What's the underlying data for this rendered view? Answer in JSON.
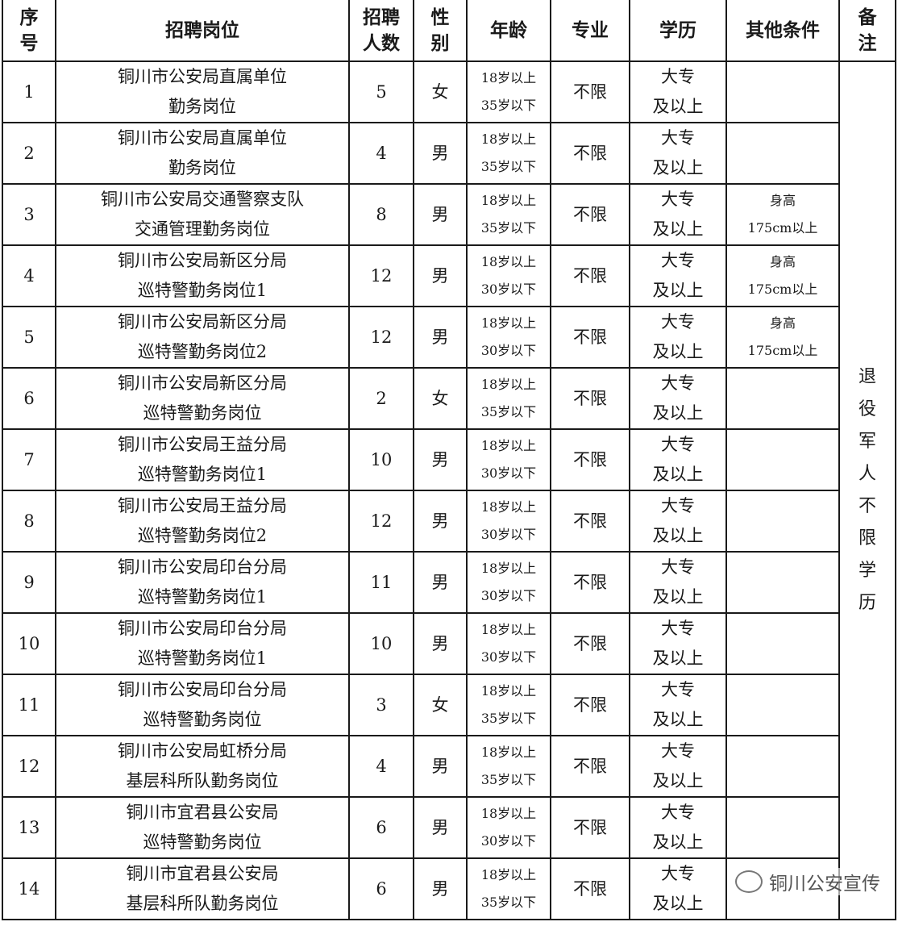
{
  "headers": {
    "no": "序号",
    "position": "招聘岗位",
    "count": "招聘人数",
    "gender": "性别",
    "age": "年龄",
    "major": "专业",
    "education": "学历",
    "other": "其他条件",
    "remark": "备注"
  },
  "rows": [
    {
      "no": "1",
      "pos1": "铜川市公安局直属单位",
      "pos2": "勤务岗位",
      "count": "5",
      "gender": "女",
      "age1": "18岁以上",
      "age2": "35岁以下",
      "major": "不限",
      "edu1": "大专",
      "edu2": "及以上",
      "other1": "",
      "other2": ""
    },
    {
      "no": "2",
      "pos1": "铜川市公安局直属单位",
      "pos2": "勤务岗位",
      "count": "4",
      "gender": "男",
      "age1": "18岁以上",
      "age2": "35岁以下",
      "major": "不限",
      "edu1": "大专",
      "edu2": "及以上",
      "other1": "",
      "other2": ""
    },
    {
      "no": "3",
      "pos1": "铜川市公安局交通警察支队",
      "pos2": "交通管理勤务岗位",
      "count": "8",
      "gender": "男",
      "age1": "18岁以上",
      "age2": "35岁以下",
      "major": "不限",
      "edu1": "大专",
      "edu2": "及以上",
      "other1": "身高",
      "other2": "175cm以上"
    },
    {
      "no": "4",
      "pos1": "铜川市公安局新区分局",
      "pos2": "巡特警勤务岗位1",
      "count": "12",
      "gender": "男",
      "age1": "18岁以上",
      "age2": "30岁以下",
      "major": "不限",
      "edu1": "大专",
      "edu2": "及以上",
      "other1": "身高",
      "other2": "175cm以上"
    },
    {
      "no": "5",
      "pos1": "铜川市公安局新区分局",
      "pos2": "巡特警勤务岗位2",
      "count": "12",
      "gender": "男",
      "age1": "18岁以上",
      "age2": "30岁以下",
      "major": "不限",
      "edu1": "大专",
      "edu2": "及以上",
      "other1": "身高",
      "other2": "175cm以上"
    },
    {
      "no": "6",
      "pos1": "铜川市公安局新区分局",
      "pos2": "巡特警勤务岗位",
      "count": "2",
      "gender": "女",
      "age1": "18岁以上",
      "age2": "35岁以下",
      "major": "不限",
      "edu1": "大专",
      "edu2": "及以上",
      "other1": "",
      "other2": ""
    },
    {
      "no": "7",
      "pos1": "铜川市公安局王益分局",
      "pos2": "巡特警勤务岗位1",
      "count": "10",
      "gender": "男",
      "age1": "18岁以上",
      "age2": "30岁以下",
      "major": "不限",
      "edu1": "大专",
      "edu2": "及以上",
      "other1": "",
      "other2": ""
    },
    {
      "no": "8",
      "pos1": "铜川市公安局王益分局",
      "pos2": "巡特警勤务岗位2",
      "count": "12",
      "gender": "男",
      "age1": "18岁以上",
      "age2": "30岁以下",
      "major": "不限",
      "edu1": "大专",
      "edu2": "及以上",
      "other1": "",
      "other2": ""
    },
    {
      "no": "9",
      "pos1": "铜川市公安局印台分局",
      "pos2": "巡特警勤务岗位1",
      "count": "11",
      "gender": "男",
      "age1": "18岁以上",
      "age2": "30岁以下",
      "major": "不限",
      "edu1": "大专",
      "edu2": "及以上",
      "other1": "",
      "other2": ""
    },
    {
      "no": "10",
      "pos1": "铜川市公安局印台分局",
      "pos2": "巡特警勤务岗位1",
      "count": "10",
      "gender": "男",
      "age1": "18岁以上",
      "age2": "30岁以下",
      "major": "不限",
      "edu1": "大专",
      "edu2": "及以上",
      "other1": "",
      "other2": ""
    },
    {
      "no": "11",
      "pos1": "铜川市公安局印台分局",
      "pos2": "巡特警勤务岗位",
      "count": "3",
      "gender": "女",
      "age1": "18岁以上",
      "age2": "35岁以下",
      "major": "不限",
      "edu1": "大专",
      "edu2": "及以上",
      "other1": "",
      "other2": ""
    },
    {
      "no": "12",
      "pos1": "铜川市公安局虹桥分局",
      "pos2": "基层科所队勤务岗位",
      "count": "4",
      "gender": "男",
      "age1": "18岁以上",
      "age2": "35岁以下",
      "major": "不限",
      "edu1": "大专",
      "edu2": "及以上",
      "other1": "",
      "other2": ""
    },
    {
      "no": "13",
      "pos1": "铜川市宜君县公安局",
      "pos2": "巡特警勤务岗位",
      "count": "6",
      "gender": "男",
      "age1": "18岁以上",
      "age2": "30岁以下",
      "major": "不限",
      "edu1": "大专",
      "edu2": "及以上",
      "other1": "",
      "other2": ""
    },
    {
      "no": "14",
      "pos1": "铜川市宜君县公安局",
      "pos2": "基层科所队勤务岗位",
      "count": "6",
      "gender": "男",
      "age1": "18岁以上",
      "age2": "35岁以下",
      "major": "不限",
      "edu1": "大专",
      "edu2": "及以上",
      "other1": "",
      "other2": ""
    }
  ],
  "remark": "退役军人不限学历",
  "watermark": "铜川公安宣传"
}
